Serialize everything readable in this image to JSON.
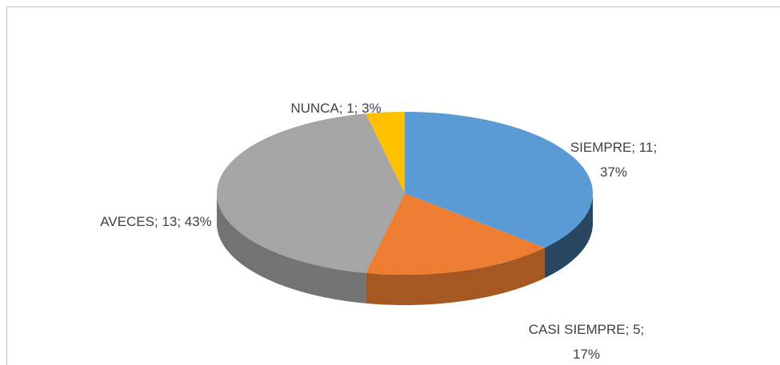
{
  "chart_data": {
    "type": "pie3d",
    "categories": [
      "SIEMPRE",
      "CASI SIEMPRE",
      "AVECES",
      "NUNCA"
    ],
    "values": [
      11,
      5,
      13,
      1
    ],
    "value_labels": [
      "SIEMPRE; 11; 37%",
      "CASI SIEMPRE; 5; 17%",
      "AVECES; 13; 43%",
      "NUNCA; 1; 3%"
    ],
    "colors": [
      "#5b9bd5",
      "#ed7d31",
      "#a5a5a5",
      "#ffc000"
    ]
  }
}
